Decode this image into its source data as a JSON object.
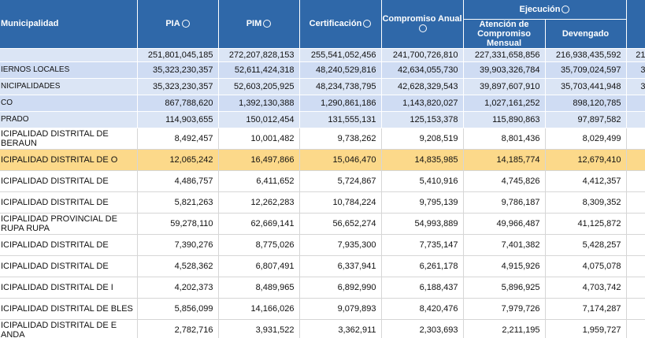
{
  "summary_rows": [
    {
      "label": "",
      "values": [
        "251,801,045,185",
        "272,207,828,153",
        "255,541,052,456",
        "241,700,726,810",
        "227,331,658,856",
        "216,938,435,592",
        "21"
      ]
    },
    {
      "label": "IERNOS LOCALES",
      "values": [
        "35,323,230,357",
        "52,611,424,318",
        "48,240,529,816",
        "42,634,055,730",
        "39,903,326,784",
        "35,709,024,597",
        "3"
      ]
    },
    {
      "label": "NICIPALIDADES",
      "values": [
        "35,323,230,357",
        "52,603,205,925",
        "48,234,738,795",
        "42,628,329,543",
        "39,897,607,910",
        "35,703,441,948",
        "3"
      ]
    },
    {
      "label": "CO",
      "values": [
        "867,788,620",
        "1,392,130,388",
        "1,290,861,186",
        "1,143,820,027",
        "1,027,161,252",
        "898,120,785",
        ""
      ]
    },
    {
      "label": "PRADO",
      "values": [
        "114,903,655",
        "150,012,454",
        "131,555,131",
        "125,153,378",
        "115,890,863",
        "97,897,582",
        ""
      ]
    }
  ],
  "header": {
    "municipalidad": "Municipalidad",
    "pia": "PIA",
    "pim": "PIM",
    "certificacion": "Certificación",
    "compromiso_anual": "Compromiso Anual",
    "ejecucion": "Ejecución",
    "atencion": "Atención de Compromiso Mensual",
    "devengado": "Devengado"
  },
  "rows": [
    {
      "name": "MUNICIPALIDAD DISTRITAL DE LA LIBERTAD - CEBERAUN",
      "name_display": "ICIPALIDAD DISTRITAL DE BERAUN",
      "pia": "8,492,457",
      "pim": "10,001,482",
      "cert": "9,738,262",
      "comp": "9,208,519",
      "aten": "8,801,436",
      "dev": "8,029,499",
      "extra": ""
    },
    {
      "name_display": "ICIPALIDAD DISTRITAL DE O",
      "pia": "12,065,242",
      "pim": "16,497,866",
      "cert": "15,046,470",
      "comp": "14,835,985",
      "aten": "14,185,774",
      "dev": "12,679,410",
      "extra": "",
      "highlight": true
    },
    {
      "name_display": "ICIPALIDAD DISTRITAL DE",
      "pia": "4,486,757",
      "pim": "6,411,652",
      "cert": "5,724,867",
      "comp": "5,410,916",
      "aten": "4,745,826",
      "dev": "4,412,357",
      "extra": ""
    },
    {
      "name_display": "ICIPALIDAD DISTRITAL DE",
      "pia": "5,821,263",
      "pim": "12,262,283",
      "cert": "10,784,224",
      "comp": "9,795,139",
      "aten": "9,786,187",
      "dev": "8,309,352",
      "extra": ""
    },
    {
      "name_display": "ICIPALIDAD PROVINCIAL DE RUPA RUPA",
      "pia": "59,278,110",
      "pim": "62,669,141",
      "cert": "56,652,274",
      "comp": "54,993,889",
      "aten": "49,966,487",
      "dev": "41,125,872",
      "extra": ""
    },
    {
      "name_display": "ICIPALIDAD DISTRITAL DE",
      "pia": "7,390,276",
      "pim": "8,775,026",
      "cert": "7,935,300",
      "comp": "7,735,147",
      "aten": "7,401,382",
      "dev": "5,428,257",
      "extra": ""
    },
    {
      "name_display": "ICIPALIDAD DISTRITAL DE",
      "pia": "4,528,362",
      "pim": "6,807,491",
      "cert": "6,337,941",
      "comp": "6,261,178",
      "aten": "4,915,926",
      "dev": "4,075,078",
      "extra": ""
    },
    {
      "name_display": "ICIPALIDAD DISTRITAL DE I",
      "pia": "4,202,373",
      "pim": "8,489,965",
      "cert": "6,892,990",
      "comp": "6,188,437",
      "aten": "5,896,925",
      "dev": "4,703,742",
      "extra": ""
    },
    {
      "name_display": "ICIPALIDAD DISTRITAL DE BLES",
      "pia": "5,856,099",
      "pim": "14,166,026",
      "cert": "9,079,893",
      "comp": "8,420,476",
      "aten": "7,979,726",
      "dev": "7,174,287",
      "extra": ""
    },
    {
      "name_display": "ICIPALIDAD DISTRITAL DE E ANDA",
      "pia": "2,782,716",
      "pim": "3,931,522",
      "cert": "3,362,911",
      "comp": "2,303,693",
      "aten": "2,211,195",
      "dev": "1,959,727",
      "extra": ""
    }
  ]
}
